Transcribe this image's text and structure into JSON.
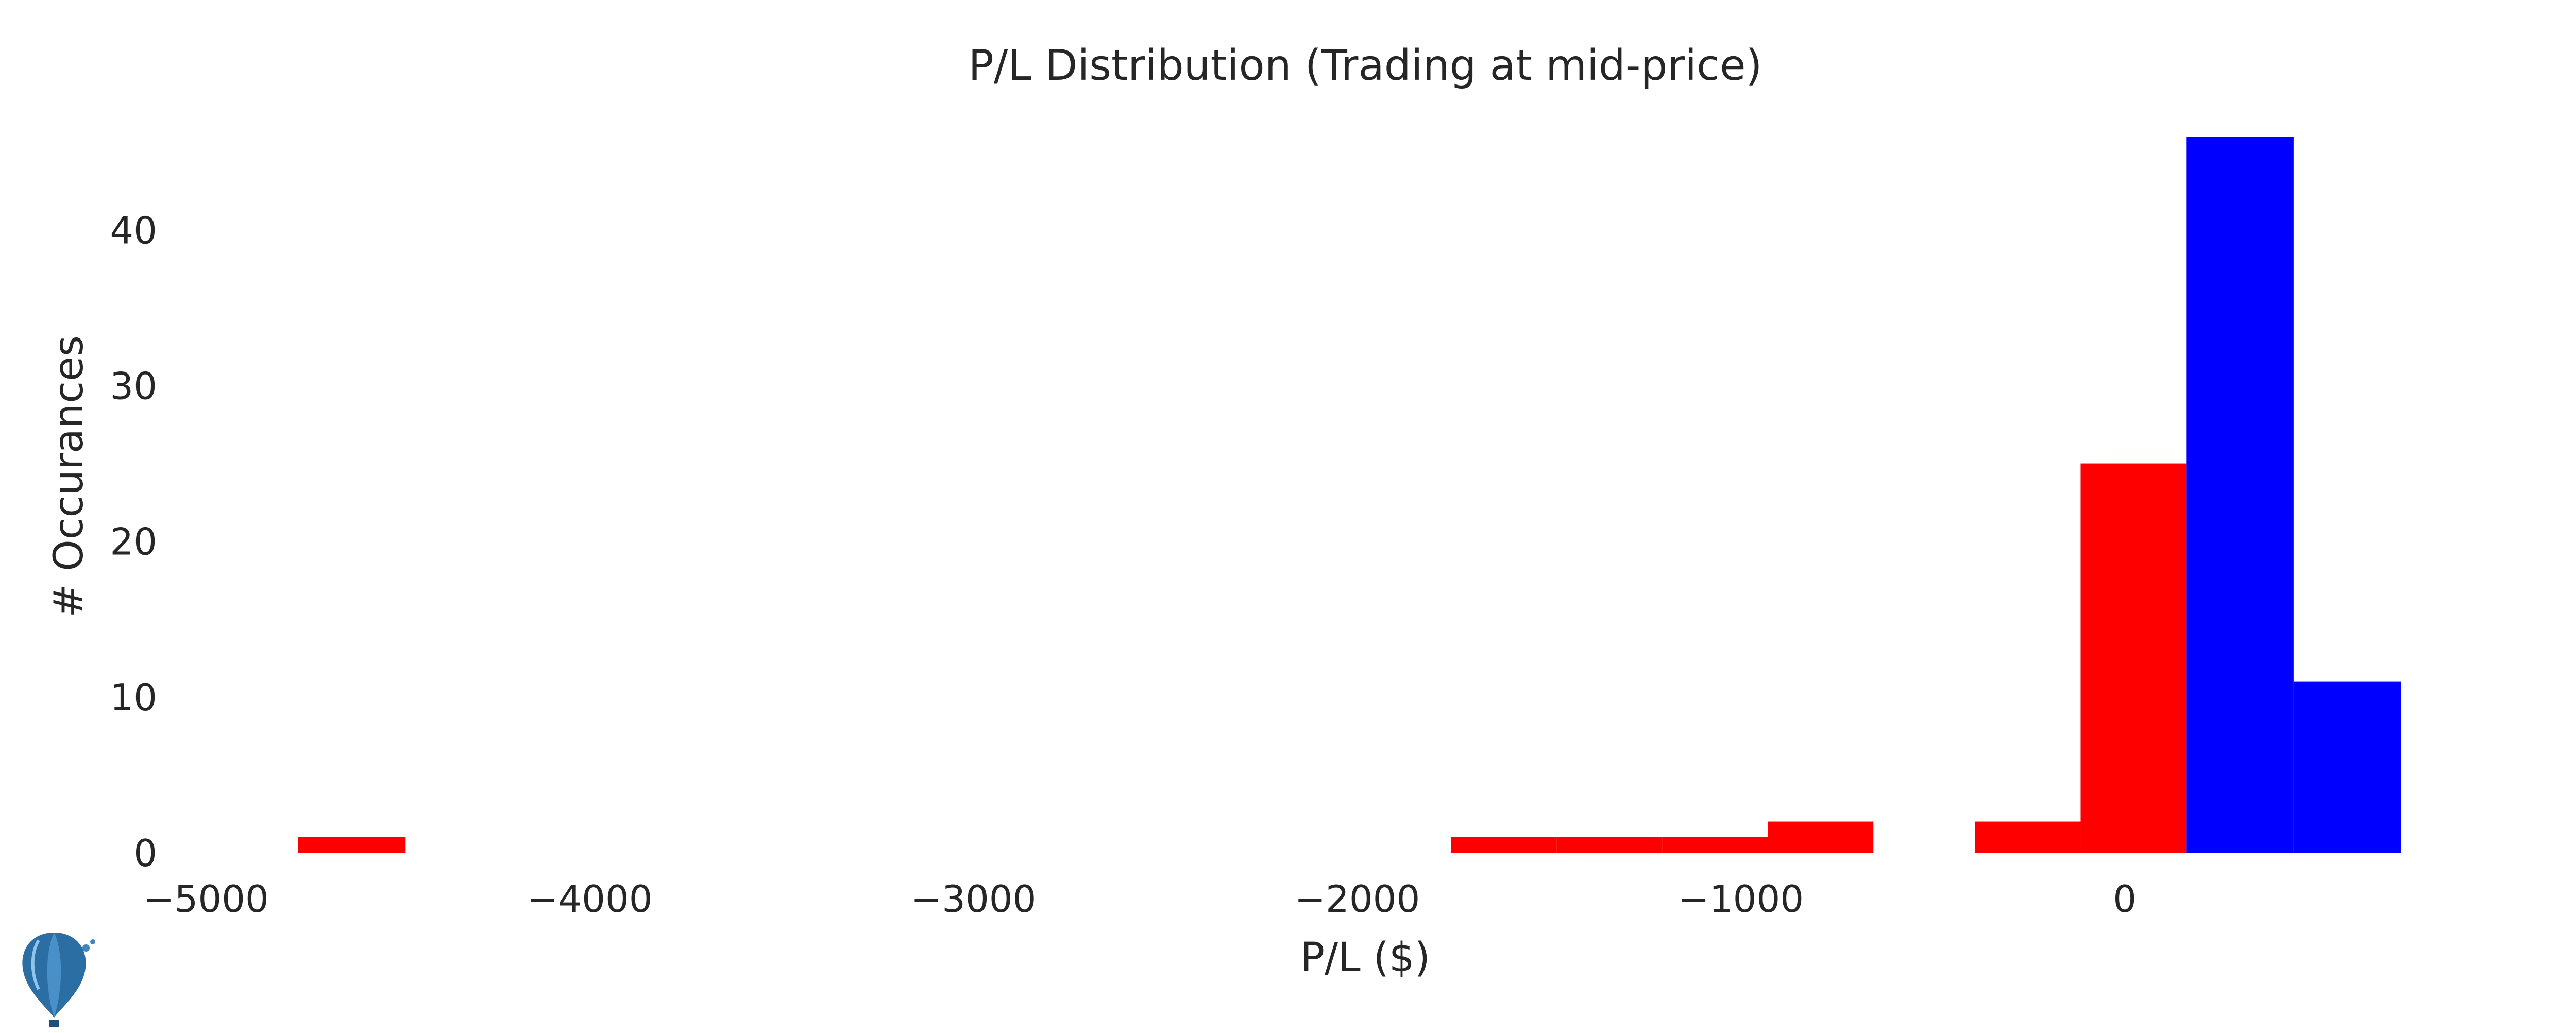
{
  "chart_data": {
    "type": "bar",
    "title": "P/L Distribution (Trading at mid-price)",
    "xlabel": "P/L ($)",
    "ylabel": "# Occurances",
    "xlim": [
      -5000,
      800
    ],
    "ylim": [
      0,
      46
    ],
    "x_ticks": [
      -5000,
      -4000,
      -3000,
      -2000,
      -1000,
      0
    ],
    "x_tick_labels": [
      "−5000",
      "−4000",
      "−3000",
      "−2000",
      "−1000",
      "0"
    ],
    "y_ticks": [
      0,
      10,
      20,
      30,
      40
    ],
    "y_tick_labels": [
      "0",
      "10",
      "20",
      "30",
      "40"
    ],
    "grid": false,
    "legend": "none",
    "colors": {
      "loss": "#ff0000",
      "profit": "#0000ff"
    },
    "series": [
      {
        "color": "loss",
        "bins": [
          {
            "x0": -4760,
            "x1": -4480,
            "count": 1
          },
          {
            "x0": -1755,
            "x1": -1480,
            "count": 1
          },
          {
            "x0": -1480,
            "x1": -1205,
            "count": 1
          },
          {
            "x0": -1205,
            "x1": -930,
            "count": 1
          },
          {
            "x0": -930,
            "x1": -655,
            "count": 2
          },
          {
            "x0": -390,
            "x1": -115,
            "count": 2
          },
          {
            "x0": -115,
            "x1": 160,
            "count": 25
          }
        ]
      },
      {
        "color": "profit",
        "bins": [
          {
            "x0": 160,
            "x1": 440,
            "count": 46
          },
          {
            "x0": 440,
            "x1": 720,
            "count": 11
          }
        ]
      }
    ]
  }
}
